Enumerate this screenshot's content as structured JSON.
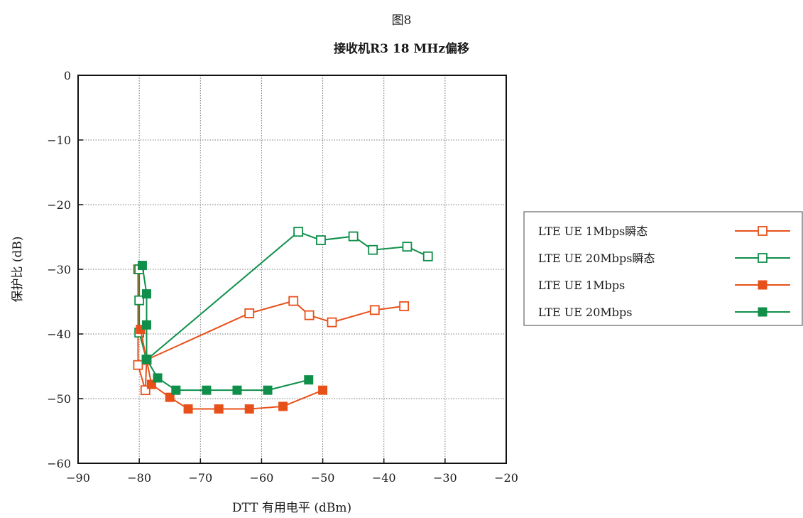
{
  "figure_label": "图8",
  "chart_data": {
    "type": "line",
    "title": "接收机R3 18 MHz偏移",
    "xlabel": "DTT 有用电平 (dBm)",
    "ylabel": "保护比 (dB)",
    "xlim": [
      -90,
      -20
    ],
    "ylim": [
      -60,
      0
    ],
    "xticks": [
      -90,
      -80,
      -70,
      -60,
      -50,
      -40,
      -30,
      -20
    ],
    "yticks": [
      0,
      -10,
      -20,
      -30,
      -40,
      -50,
      -60
    ],
    "xtick_labels": [
      "−90",
      "−80",
      "−70",
      "−60",
      "−50",
      "−40",
      "−30",
      "−20"
    ],
    "ytick_labels": [
      "0",
      "−10",
      "−20",
      "−30",
      "−40",
      "−50",
      "−60"
    ],
    "grid": true,
    "legend_position": "right",
    "series": [
      {
        "name": "LTE UE 1Mbps瞬态",
        "color": "#e8501a",
        "marker": "square-open",
        "points": [
          [
            -80.2,
            -30.0
          ],
          [
            -80.2,
            -44.8
          ],
          [
            -79.0,
            -48.7
          ],
          [
            -78.8,
            -44.0
          ],
          [
            -62.0,
            -36.8
          ],
          [
            -54.8,
            -34.9
          ],
          [
            -52.2,
            -37.1
          ],
          [
            -48.5,
            -38.2
          ],
          [
            -41.5,
            -36.3
          ],
          [
            -36.7,
            -35.7
          ]
        ]
      },
      {
        "name": "LTE UE 20Mbps瞬态",
        "color": "#0f8f4a",
        "marker": "square-open",
        "points": [
          [
            -80.0,
            -30.0
          ],
          [
            -80.0,
            -34.8
          ],
          [
            -80.0,
            -39.8
          ],
          [
            -78.8,
            -44.0
          ],
          [
            -54.0,
            -24.2
          ],
          [
            -50.3,
            -25.5
          ],
          [
            -45.0,
            -24.9
          ],
          [
            -41.8,
            -27.0
          ],
          [
            -36.2,
            -26.5
          ],
          [
            -32.8,
            -28.0
          ]
        ]
      },
      {
        "name": "LTE UE 1Mbps",
        "color": "#e8501a",
        "marker": "square-filled",
        "points": [
          [
            -79.8,
            -39.3
          ],
          [
            -78.8,
            -44.0
          ],
          [
            -78.0,
            -47.8
          ],
          [
            -75.0,
            -49.8
          ],
          [
            -72.0,
            -51.6
          ],
          [
            -67.0,
            -51.6
          ],
          [
            -62.0,
            -51.6
          ],
          [
            -56.5,
            -51.2
          ],
          [
            -50.0,
            -48.7
          ]
        ]
      },
      {
        "name": "LTE UE 20Mbps",
        "color": "#0f8f4a",
        "marker": "square-filled",
        "points": [
          [
            -79.5,
            -29.4
          ],
          [
            -78.8,
            -33.8
          ],
          [
            -78.8,
            -38.6
          ],
          [
            -78.8,
            -43.9
          ],
          [
            -77.0,
            -46.8
          ],
          [
            -74.0,
            -48.7
          ],
          [
            -69.0,
            -48.7
          ],
          [
            -64.0,
            -48.7
          ],
          [
            -59.0,
            -48.7
          ],
          [
            -52.3,
            -47.1
          ]
        ]
      }
    ]
  }
}
